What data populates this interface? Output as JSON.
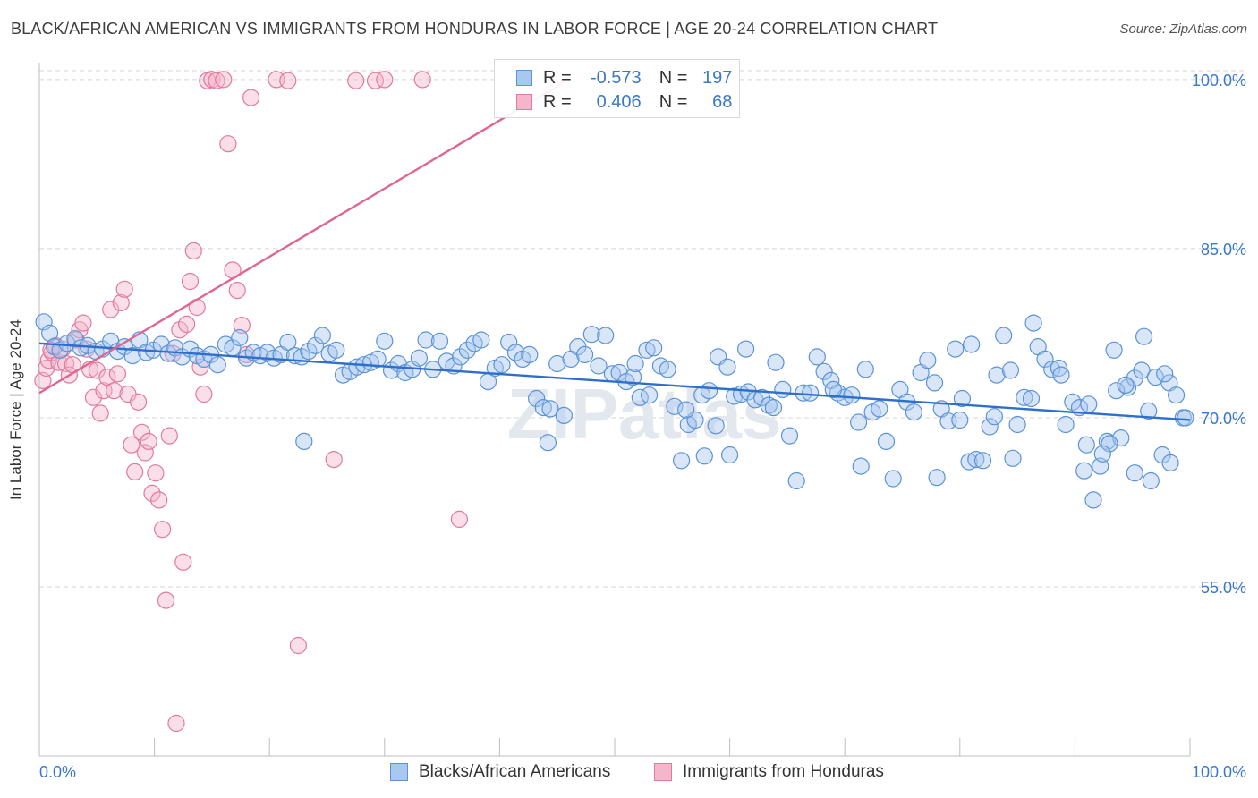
{
  "title": "BLACK/AFRICAN AMERICAN VS IMMIGRANTS FROM HONDURAS IN LABOR FORCE | AGE 20-24 CORRELATION CHART",
  "source": "Source: ZipAtlas.com",
  "watermark": "ZIPatlas",
  "colors": {
    "blue": "#5b93d6",
    "blue_fill": "#a9c8ef",
    "pink": "#e07a9e",
    "pink_fill": "#f5b6cb",
    "accent_text": "#3a78c9",
    "grid": "#d5d5d5"
  },
  "legend": {
    "rows": [
      {
        "swatch": "blue",
        "r_label": "R =",
        "r_value": "-0.573",
        "n_label": "N =",
        "n_value": "197"
      },
      {
        "swatch": "pink",
        "r_label": "R =",
        "r_value": "0.406",
        "n_label": "N =",
        "n_value": "68"
      }
    ]
  },
  "bottom_legend": [
    {
      "swatch": "blue",
      "label": "Blacks/African Americans"
    },
    {
      "swatch": "pink",
      "label": "Immigrants from Honduras"
    }
  ],
  "chart_data": {
    "type": "scatter",
    "ylabel": "In Labor Force | Age 20-24",
    "xlabel": "",
    "xlim": [
      0,
      100
    ],
    "ylim": [
      40,
      101.5
    ],
    "x_tick_labels": [
      "0.0%",
      "100.0%"
    ],
    "y_ticks": [
      55,
      70,
      85,
      100
    ],
    "y_tick_labels": [
      "55.0%",
      "70.0%",
      "85.0%",
      "100.0%"
    ],
    "grid": "horizontal dashed",
    "legend_position": "top-center",
    "series": [
      {
        "name": "Blacks/African Americans",
        "color": "blue",
        "trend": {
          "x": [
            0,
            100
          ],
          "y": [
            76.6,
            69.8
          ]
        },
        "points": [
          [
            0.4,
            78.5
          ],
          [
            0.9,
            77.5
          ],
          [
            1.3,
            76.3
          ],
          [
            1.8,
            76.0
          ],
          [
            2.4,
            76.6
          ],
          [
            3.1,
            77.0
          ],
          [
            3.6,
            76.2
          ],
          [
            4.2,
            76.4
          ],
          [
            4.9,
            75.9
          ],
          [
            5.5,
            76.1
          ],
          [
            6.2,
            76.8
          ],
          [
            6.8,
            75.9
          ],
          [
            7.4,
            76.3
          ],
          [
            8.1,
            75.5
          ],
          [
            8.7,
            76.9
          ],
          [
            9.3,
            75.8
          ],
          [
            9.9,
            76.0
          ],
          [
            10.6,
            76.5
          ],
          [
            11.2,
            75.7
          ],
          [
            11.8,
            76.2
          ],
          [
            12.4,
            75.4
          ],
          [
            13.1,
            76.1
          ],
          [
            13.7,
            75.5
          ],
          [
            14.3,
            75.2
          ],
          [
            14.9,
            75.6
          ],
          [
            15.5,
            74.7
          ],
          [
            16.2,
            76.5
          ],
          [
            16.8,
            76.2
          ],
          [
            17.4,
            77.1
          ],
          [
            18.0,
            75.3
          ],
          [
            18.6,
            75.8
          ],
          [
            19.2,
            75.5
          ],
          [
            19.8,
            75.8
          ],
          [
            20.4,
            75.3
          ],
          [
            21.0,
            75.6
          ],
          [
            21.6,
            76.7
          ],
          [
            22.2,
            75.5
          ],
          [
            22.8,
            75.4
          ],
          [
            23.4,
            75.9
          ],
          [
            24.0,
            76.4
          ],
          [
            24.6,
            77.3
          ],
          [
            25.2,
            75.7
          ],
          [
            25.8,
            76.0
          ],
          [
            26.4,
            73.8
          ],
          [
            27.0,
            74.1
          ],
          [
            27.6,
            74.5
          ],
          [
            28.2,
            74.7
          ],
          [
            28.8,
            74.9
          ],
          [
            29.4,
            75.2
          ],
          [
            30.0,
            76.8
          ],
          [
            30.6,
            74.2
          ],
          [
            31.2,
            74.8
          ],
          [
            31.8,
            74.0
          ],
          [
            32.4,
            74.3
          ],
          [
            33.0,
            75.3
          ],
          [
            33.6,
            76.9
          ],
          [
            34.2,
            74.3
          ],
          [
            34.8,
            76.8
          ],
          [
            35.4,
            75.0
          ],
          [
            36.0,
            74.6
          ],
          [
            36.6,
            75.4
          ],
          [
            37.2,
            76.0
          ],
          [
            37.8,
            76.6
          ],
          [
            38.4,
            76.9
          ],
          [
            39.0,
            73.2
          ],
          [
            39.6,
            74.4
          ],
          [
            40.2,
            74.7
          ],
          [
            40.8,
            76.7
          ],
          [
            41.4,
            75.8
          ],
          [
            42.0,
            75.2
          ],
          [
            42.6,
            75.6
          ],
          [
            43.2,
            71.7
          ],
          [
            43.8,
            70.9
          ],
          [
            44.4,
            70.8
          ],
          [
            45.0,
            74.8
          ],
          [
            45.6,
            70.2
          ],
          [
            46.2,
            75.2
          ],
          [
            46.8,
            76.3
          ],
          [
            47.4,
            75.6
          ],
          [
            48.0,
            77.4
          ],
          [
            48.6,
            74.6
          ],
          [
            49.2,
            77.3
          ],
          [
            49.8,
            73.9
          ],
          [
            50.4,
            74.0
          ],
          [
            51.0,
            73.2
          ],
          [
            51.6,
            73.6
          ],
          [
            52.2,
            71.8
          ],
          [
            52.8,
            76.0
          ],
          [
            53.4,
            76.2
          ],
          [
            54.0,
            74.6
          ],
          [
            54.6,
            74.3
          ],
          [
            55.2,
            71.0
          ],
          [
            55.8,
            66.2
          ],
          [
            56.4,
            69.4
          ],
          [
            57.0,
            69.8
          ],
          [
            57.6,
            72.0
          ],
          [
            58.2,
            72.4
          ],
          [
            59.0,
            75.4
          ],
          [
            59.8,
            74.5
          ],
          [
            60.4,
            71.9
          ],
          [
            61.0,
            72.1
          ],
          [
            61.6,
            72.3
          ],
          [
            62.2,
            71.6
          ],
          [
            62.8,
            71.8
          ],
          [
            63.4,
            71.1
          ],
          [
            64.0,
            74.9
          ],
          [
            64.6,
            72.5
          ],
          [
            65.2,
            68.4
          ],
          [
            65.8,
            64.4
          ],
          [
            66.4,
            72.2
          ],
          [
            67.0,
            72.2
          ],
          [
            67.6,
            75.4
          ],
          [
            68.2,
            74.1
          ],
          [
            68.8,
            73.3
          ],
          [
            69.4,
            72.2
          ],
          [
            70.0,
            71.8
          ],
          [
            70.6,
            72.0
          ],
          [
            71.2,
            69.6
          ],
          [
            71.8,
            74.3
          ],
          [
            72.4,
            70.5
          ],
          [
            73.0,
            70.8
          ],
          [
            73.6,
            67.9
          ],
          [
            74.2,
            64.6
          ],
          [
            74.8,
            72.5
          ],
          [
            75.4,
            71.4
          ],
          [
            76.0,
            70.5
          ],
          [
            76.6,
            74.0
          ],
          [
            77.2,
            75.1
          ],
          [
            77.8,
            73.1
          ],
          [
            78.4,
            70.8
          ],
          [
            79.0,
            69.7
          ],
          [
            79.6,
            76.1
          ],
          [
            80.2,
            71.7
          ],
          [
            80.8,
            66.1
          ],
          [
            81.4,
            66.3
          ],
          [
            82.0,
            66.2
          ],
          [
            82.6,
            69.2
          ],
          [
            83.2,
            73.8
          ],
          [
            83.8,
            77.3
          ],
          [
            84.4,
            74.2
          ],
          [
            85.0,
            69.4
          ],
          [
            85.6,
            71.8
          ],
          [
            86.2,
            71.7
          ],
          [
            86.8,
            76.3
          ],
          [
            87.4,
            75.2
          ],
          [
            88.0,
            74.3
          ],
          [
            88.6,
            74.4
          ],
          [
            89.2,
            69.4
          ],
          [
            89.8,
            71.4
          ],
          [
            90.4,
            70.9
          ],
          [
            91.0,
            67.6
          ],
          [
            91.6,
            62.7
          ],
          [
            92.2,
            65.7
          ],
          [
            92.8,
            67.9
          ],
          [
            93.4,
            76.0
          ],
          [
            94.0,
            68.2
          ],
          [
            94.6,
            72.7
          ],
          [
            95.2,
            73.5
          ],
          [
            95.8,
            74.2
          ],
          [
            96.4,
            70.6
          ],
          [
            97.0,
            73.6
          ],
          [
            97.6,
            66.7
          ],
          [
            98.2,
            73.1
          ],
          [
            98.8,
            72.0
          ],
          [
            99.4,
            70.0
          ],
          [
            44.2,
            67.8
          ],
          [
            23.0,
            67.9
          ],
          [
            57.8,
            66.6
          ],
          [
            71.4,
            65.7
          ],
          [
            78.0,
            64.7
          ],
          [
            84.6,
            66.4
          ],
          [
            90.8,
            65.3
          ],
          [
            95.2,
            65.1
          ],
          [
            98.3,
            66.0
          ],
          [
            99.6,
            70.0
          ],
          [
            91.2,
            71.2
          ],
          [
            86.4,
            78.4
          ],
          [
            88.8,
            73.8
          ],
          [
            93.6,
            72.4
          ],
          [
            96.0,
            77.2
          ],
          [
            96.6,
            64.4
          ],
          [
            93.0,
            67.7
          ],
          [
            97.8,
            73.9
          ],
          [
            94.4,
            72.9
          ],
          [
            92.4,
            66.8
          ],
          [
            83.0,
            70.1
          ],
          [
            81.0,
            76.5
          ],
          [
            80.0,
            69.8
          ],
          [
            69.0,
            72.5
          ],
          [
            63.8,
            70.9
          ],
          [
            61.4,
            76.1
          ],
          [
            60.0,
            66.7
          ],
          [
            58.8,
            69.3
          ],
          [
            56.2,
            70.7
          ],
          [
            53.0,
            72.0
          ],
          [
            51.8,
            74.8
          ]
        ]
      },
      {
        "name": "Immigrants from Honduras",
        "color": "pink",
        "trend": {
          "x": [
            0,
            46
          ],
          "y": [
            72.2,
            100.0
          ]
        },
        "points": [
          [
            0.3,
            73.3
          ],
          [
            0.6,
            74.4
          ],
          [
            0.8,
            75.1
          ],
          [
            1.1,
            75.8
          ],
          [
            1.4,
            76.4
          ],
          [
            1.7,
            74.9
          ],
          [
            2.0,
            76.1
          ],
          [
            2.3,
            74.8
          ],
          [
            2.6,
            73.8
          ],
          [
            2.9,
            74.7
          ],
          [
            3.2,
            76.9
          ],
          [
            3.5,
            77.8
          ],
          [
            3.8,
            78.4
          ],
          [
            4.1,
            76.1
          ],
          [
            4.4,
            74.3
          ],
          [
            4.7,
            71.8
          ],
          [
            5.0,
            74.2
          ],
          [
            5.3,
            70.4
          ],
          [
            5.6,
            72.4
          ],
          [
            5.9,
            73.6
          ],
          [
            6.2,
            79.6
          ],
          [
            6.5,
            72.4
          ],
          [
            6.8,
            73.9
          ],
          [
            7.1,
            80.2
          ],
          [
            7.4,
            81.4
          ],
          [
            7.7,
            72.1
          ],
          [
            8.0,
            67.6
          ],
          [
            8.3,
            65.2
          ],
          [
            8.6,
            71.4
          ],
          [
            8.9,
            68.7
          ],
          [
            9.2,
            66.9
          ],
          [
            9.5,
            67.9
          ],
          [
            9.8,
            63.3
          ],
          [
            10.1,
            65.1
          ],
          [
            10.4,
            62.7
          ],
          [
            10.7,
            60.1
          ],
          [
            11.0,
            53.8
          ],
          [
            11.3,
            68.4
          ],
          [
            11.6,
            75.7
          ],
          [
            11.9,
            42.9
          ],
          [
            12.2,
            77.8
          ],
          [
            12.5,
            57.2
          ],
          [
            12.8,
            78.3
          ],
          [
            13.1,
            82.1
          ],
          [
            13.4,
            84.8
          ],
          [
            13.7,
            79.8
          ],
          [
            14.0,
            74.5
          ],
          [
            14.3,
            72.1
          ],
          [
            14.6,
            99.9
          ],
          [
            15.0,
            100.0
          ],
          [
            15.4,
            99.9
          ],
          [
            16.0,
            100.0
          ],
          [
            16.4,
            94.3
          ],
          [
            16.8,
            83.1
          ],
          [
            17.2,
            81.3
          ],
          [
            17.6,
            78.2
          ],
          [
            18.0,
            75.6
          ],
          [
            18.4,
            98.4
          ],
          [
            20.6,
            100.0
          ],
          [
            21.6,
            99.9
          ],
          [
            22.5,
            49.8
          ],
          [
            25.6,
            66.3
          ],
          [
            27.5,
            99.9
          ],
          [
            29.2,
            99.9
          ],
          [
            30.0,
            100.0
          ],
          [
            33.3,
            100.0
          ],
          [
            36.5,
            61.0
          ],
          [
            1.0,
            76.0
          ]
        ]
      }
    ]
  }
}
